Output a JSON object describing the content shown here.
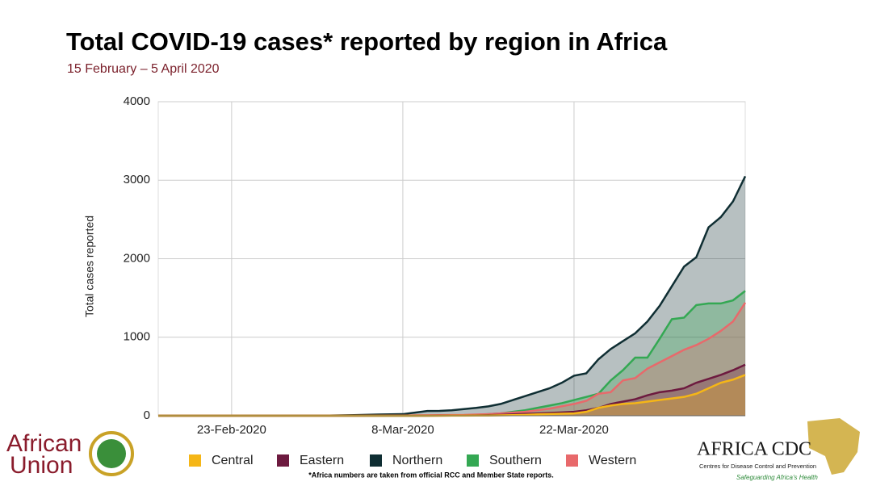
{
  "chart_data": {
    "type": "area",
    "title": "Total COVID-19 cases* reported by region in Africa",
    "subtitle": "15 February – 5 April 2020",
    "y_label": "Total cases reported",
    "footnote": "*Africa numbers are taken from official RCC and Member State reports.",
    "logos": {
      "left": [
        "African",
        "Union"
      ],
      "right": "AFRICA CDC",
      "right_sub": "Centres for Disease Control and Prevention",
      "right_tag": "Safeguarding Africa's Health"
    },
    "categories": [
      null,
      null,
      null,
      null,
      null,
      null,
      "23-Feb-2020",
      null,
      null,
      null,
      null,
      null,
      null,
      null,
      null,
      null,
      null,
      null,
      null,
      null,
      "8-Mar-2020",
      null,
      null,
      null,
      null,
      null,
      null,
      null,
      null,
      null,
      null,
      null,
      null,
      null,
      "22-Mar-2020",
      null,
      null,
      null,
      null,
      null,
      null,
      null,
      null,
      null,
      null,
      null,
      null,
      null,
      null
    ],
    "ylim": [
      0,
      4000
    ],
    "yticks": [
      0,
      1000,
      2000,
      3000,
      4000
    ],
    "grid": true,
    "series": [
      {
        "name": "Central",
        "color": "#f5b617",
        "values": [
          0,
          0,
          0,
          0,
          0,
          0,
          0,
          0,
          0,
          0,
          0,
          0,
          0,
          0,
          0,
          0,
          0,
          0,
          0,
          0,
          0,
          0,
          0,
          0,
          1,
          1,
          2,
          3,
          5,
          8,
          12,
          18,
          22,
          26,
          30,
          50,
          100,
          130,
          150,
          160,
          180,
          200,
          220,
          240,
          280,
          350,
          420,
          460,
          520
        ]
      },
      {
        "name": "Eastern",
        "color": "#6d1a3f",
        "values": [
          0,
          0,
          0,
          0,
          0,
          0,
          0,
          0,
          0,
          0,
          0,
          0,
          0,
          0,
          0,
          0,
          0,
          0,
          0,
          0,
          0,
          0,
          0,
          1,
          2,
          3,
          5,
          8,
          12,
          18,
          24,
          30,
          36,
          42,
          50,
          70,
          100,
          150,
          180,
          210,
          260,
          300,
          320,
          350,
          420,
          470,
          520,
          580,
          650
        ]
      },
      {
        "name": "Northern",
        "color": "#0f2e33",
        "values": [
          0,
          0,
          0,
          0,
          0,
          0,
          0,
          1,
          1,
          1,
          1,
          2,
          2,
          2,
          3,
          5,
          8,
          12,
          15,
          18,
          20,
          40,
          60,
          62,
          70,
          85,
          100,
          120,
          150,
          200,
          250,
          300,
          350,
          420,
          510,
          540,
          720,
          850,
          950,
          1050,
          1200,
          1400,
          1650,
          1900,
          2020,
          2400,
          2530,
          2730,
          3050
        ]
      },
      {
        "name": "Southern",
        "color": "#34a853",
        "values": [
          0,
          0,
          0,
          0,
          0,
          0,
          0,
          0,
          0,
          0,
          0,
          0,
          0,
          0,
          0,
          0,
          0,
          0,
          0,
          0,
          0,
          0,
          1,
          2,
          3,
          6,
          10,
          20,
          30,
          50,
          70,
          100,
          130,
          160,
          200,
          240,
          280,
          450,
          580,
          740,
          740,
          980,
          1230,
          1250,
          1410,
          1430,
          1430,
          1470,
          1590
        ]
      },
      {
        "name": "Western",
        "color": "#e8696b",
        "values": [
          0,
          0,
          0,
          0,
          0,
          0,
          0,
          0,
          0,
          0,
          0,
          0,
          0,
          0,
          0,
          0,
          0,
          1,
          1,
          2,
          3,
          5,
          6,
          8,
          9,
          10,
          15,
          20,
          30,
          40,
          50,
          70,
          90,
          120,
          150,
          190,
          280,
          300,
          450,
          480,
          600,
          680,
          760,
          840,
          900,
          980,
          1080,
          1200,
          1440
        ]
      }
    ],
    "draw_order": [
      2,
      3,
      4,
      1,
      0
    ]
  }
}
